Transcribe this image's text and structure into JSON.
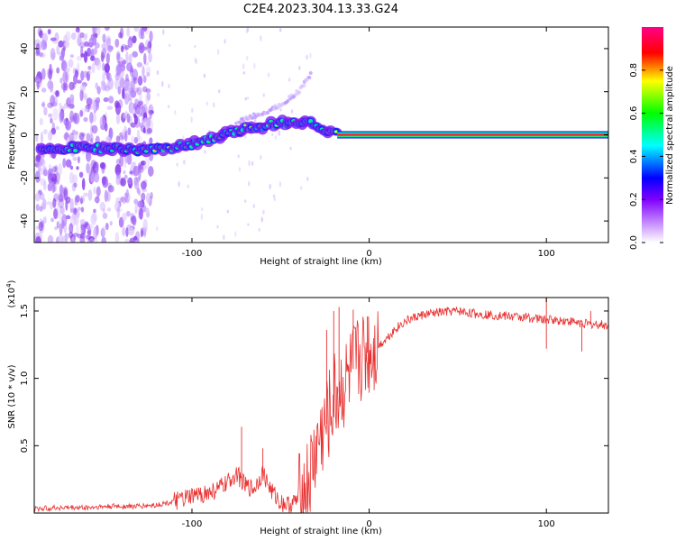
{
  "figure": {
    "title": "C2E4.2023.304.13.33.G24"
  },
  "chart_data": [
    {
      "type": "heatmap",
      "xlabel": "Height of straight line (km)",
      "ylabel": "Frequency (Hz)",
      "xlim": [
        -189,
        135
      ],
      "ylim": [
        -50,
        50
      ],
      "xticks": [
        -100,
        0,
        100
      ],
      "xtick_labels": [
        "-100",
        "0",
        "100"
      ],
      "yticks": [
        -40,
        -20,
        0,
        20,
        40
      ],
      "ytick_labels": [
        "-40",
        "-20",
        "0",
        "20",
        "40"
      ],
      "colorbar": {
        "label": "Normalized spectral amplitude",
        "range": [
          0,
          1
        ],
        "ticks": [
          0,
          0.2,
          0.4,
          0.6,
          0.8
        ],
        "tick_labels": [
          "0.0",
          "0.2",
          "0.4",
          "0.6",
          "0.8"
        ],
        "colors": [
          "#ffffff",
          "#cc99ff",
          "#8000ff",
          "#0000ff",
          "#00ffff",
          "#00ff00",
          "#ffff00",
          "#ff0000",
          "#ff0088"
        ]
      },
      "ridge": [
        {
          "x": -185,
          "y": -6
        },
        {
          "x": -160,
          "y": -6
        },
        {
          "x": -130,
          "y": -7
        },
        {
          "x": -110,
          "y": -6
        },
        {
          "x": -100,
          "y": -4
        },
        {
          "x": -85,
          "y": -1
        },
        {
          "x": -70,
          "y": 3
        },
        {
          "x": -55,
          "y": 5
        },
        {
          "x": -40,
          "y": 6
        },
        {
          "x": -30,
          "y": 5
        },
        {
          "x": -25,
          "y": 1
        },
        {
          "x": -15,
          "y": 0
        },
        {
          "x": 0,
          "y": 0
        },
        {
          "x": 50,
          "y": 0
        },
        {
          "x": 100,
          "y": 0
        },
        {
          "x": 135,
          "y": 0
        }
      ],
      "upper_branch": [
        {
          "x": -75,
          "y": 6
        },
        {
          "x": -60,
          "y": 10
        },
        {
          "x": -50,
          "y": 14
        },
        {
          "x": -40,
          "y": 20
        },
        {
          "x": -33,
          "y": 28
        }
      ]
    },
    {
      "type": "line",
      "xlabel": "Height of straight line (km)",
      "ylabel": "SNR (10 * v/v)",
      "y_multiplier": "(x10",
      "y_multiplier_exp": "4",
      "xlim": [
        -189,
        135
      ],
      "ylim": [
        0,
        1.6
      ],
      "xticks": [
        -100,
        0,
        100
      ],
      "xtick_labels": [
        "-100",
        "0",
        "100"
      ],
      "yticks": [
        0.5,
        1.0,
        1.5
      ],
      "ytick_labels": [
        "0.5",
        "1.0",
        "1.5"
      ],
      "series": [
        {
          "color": "#e83030",
          "x": [
            -189,
            -175,
            -160,
            -145,
            -130,
            -120,
            -112,
            -105,
            -100,
            -95,
            -90,
            -85,
            -80,
            -75,
            -70,
            -65,
            -60,
            -55,
            -50,
            -45,
            -40,
            -37,
            -35,
            -33,
            -31,
            -30,
            -28,
            -26,
            -25,
            -23,
            -21,
            -20,
            -18,
            -15,
            -12,
            -10,
            -8,
            -5,
            -2,
            0,
            3,
            6,
            10,
            15,
            20,
            25,
            30,
            40,
            50,
            60,
            70,
            80,
            90,
            97,
            100,
            103,
            105,
            110,
            115,
            120,
            125,
            130,
            135
          ],
          "y": [
            0.03,
            0.04,
            0.04,
            0.05,
            0.05,
            0.06,
            0.08,
            0.1,
            0.12,
            0.14,
            0.15,
            0.18,
            0.22,
            0.3,
            0.2,
            0.18,
            0.3,
            0.16,
            0.08,
            0.06,
            0.1,
            0.14,
            0.2,
            0.28,
            0.4,
            0.46,
            0.55,
            0.6,
            0.62,
            0.7,
            0.78,
            0.85,
            0.88,
            0.92,
            0.98,
            1.04,
            1.1,
            1.15,
            1.18,
            1.2,
            1.22,
            1.25,
            1.3,
            1.37,
            1.42,
            1.45,
            1.47,
            1.49,
            1.5,
            1.48,
            1.47,
            1.46,
            1.45,
            1.44,
            1.43,
            1.44,
            1.43,
            1.43,
            1.42,
            1.41,
            1.4,
            1.4,
            1.39
          ]
        }
      ],
      "spikes": [
        {
          "x": -72,
          "y": 0.64
        },
        {
          "x": -60,
          "y": 0.48
        },
        {
          "x": -24,
          "y": 1.36
        },
        {
          "x": -20,
          "y": 1.5
        },
        {
          "x": -17,
          "y": 1.53
        },
        {
          "x": -9,
          "y": 1.51
        },
        {
          "x": -1,
          "y": 1.46
        },
        {
          "x": 100,
          "y": 1.6
        },
        {
          "x": 100,
          "y": 1.22
        },
        {
          "x": 120,
          "y": 1.2
        },
        {
          "x": 125,
          "y": 1.5
        }
      ]
    }
  ]
}
